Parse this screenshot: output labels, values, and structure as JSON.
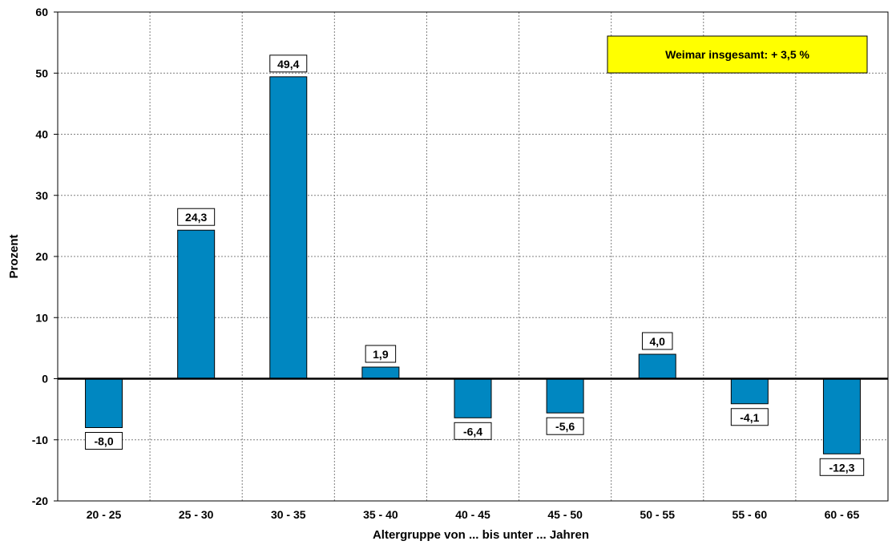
{
  "chart_data": {
    "type": "bar",
    "categories": [
      "20 - 25",
      "25 - 30",
      "30 - 35",
      "35 - 40",
      "40 - 45",
      "45 - 50",
      "50 - 55",
      "55 - 60",
      "60 - 65"
    ],
    "values": [
      -8.0,
      24.3,
      49.4,
      1.9,
      -6.4,
      -5.6,
      4.0,
      -4.1,
      -12.3
    ],
    "data_labels": [
      "-8,0",
      "24,3",
      "49,4",
      "1,9",
      "-6,4",
      "-5,6",
      "4,0",
      "-4,1",
      "-12,3"
    ],
    "xlabel": "Altergruppe von ... bis unter ... Jahren",
    "ylabel": "Prozent",
    "ylim": [
      -20,
      60
    ],
    "yticks": [
      -20,
      -10,
      0,
      10,
      20,
      30,
      40,
      50,
      60
    ],
    "grid": true,
    "annotation": "Weimar insgesamt:  + 3,5 %"
  },
  "colors": {
    "bar": "#0087c1",
    "annotation_bg": "#ffff00",
    "grid": "#7f7f7f"
  }
}
